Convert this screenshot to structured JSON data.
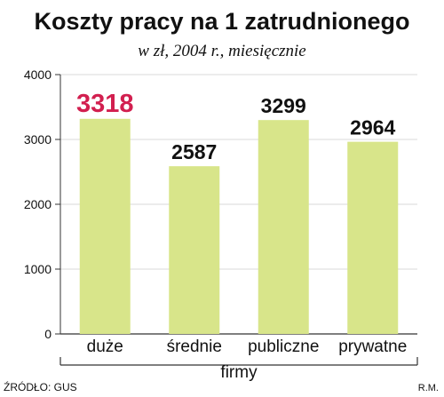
{
  "chart_data": {
    "type": "bar",
    "title": "Koszty pracy na 1 zatrudnionego",
    "subtitle": "w zł, 2004 r., miesięcznie",
    "categories": [
      "duże",
      "średnie",
      "publiczne",
      "prywatne"
    ],
    "values": [
      3318,
      2587,
      3299,
      2964
    ],
    "value_labels": [
      "3318",
      "2587",
      "3299",
      "2964"
    ],
    "highlight_index": 0,
    "xlabel": "firmy",
    "ylabel": "",
    "ylim": [
      0,
      4000
    ],
    "yticks": [
      0,
      1000,
      2000,
      3000,
      4000
    ],
    "grid": true,
    "legend": "none"
  },
  "colors": {
    "background": "#ffffff",
    "plot_background": "#ffffff",
    "bar": "#d8e58a",
    "grid": "#d9d9d9",
    "axis": "#333333",
    "text": "#111111",
    "highlight_label": "#d21f4f"
  },
  "footer": {
    "source": "ŹRÓDŁO: GUS",
    "author": "R.M."
  }
}
